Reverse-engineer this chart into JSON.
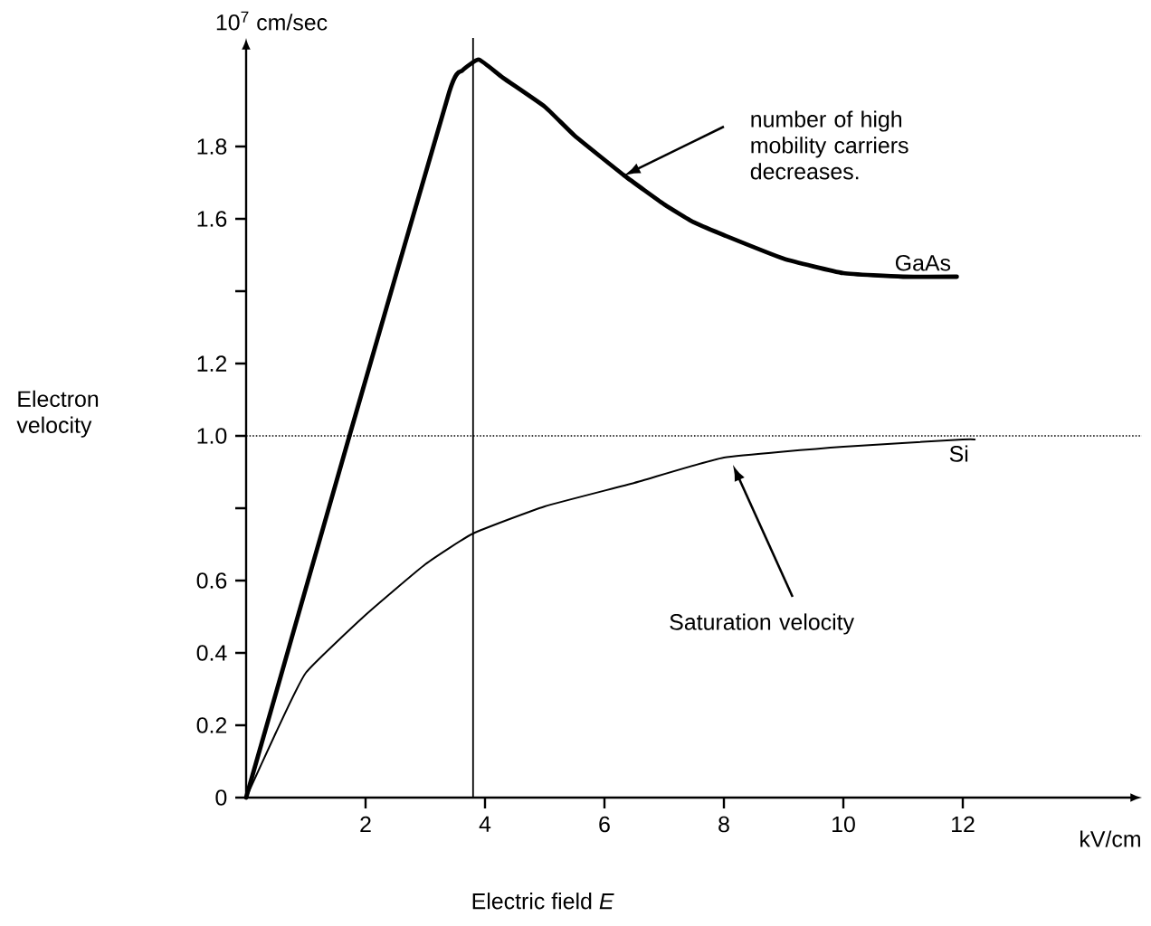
{
  "chart_data": {
    "type": "line",
    "xlabel": "Electric field *E*",
    "ylabel": "Electron velocity",
    "xlim": [
      0,
      15
    ],
    "ylim": [
      0,
      2.1
    ],
    "xticks": [
      2,
      4,
      6,
      8,
      10,
      12
    ],
    "yticks": [
      0,
      0.2,
      0.4,
      0.6,
      {
        "value": 0.8,
        "label": null
      },
      {
        "value": 1,
        "label": "1.0"
      },
      1.2,
      {
        "value": 1.4,
        "label": null
      },
      1.6,
      1.8
    ],
    "marker": "none",
    "series": [
      {
        "name": "GaAs",
        "color": "#000000",
        "line_style": "solid",
        "x": [
          0,
          1.73,
          3.4,
          3.62,
          3.9,
          4.3,
          5,
          5.5,
          6.33,
          7,
          7.5,
          8,
          9,
          10,
          11,
          11.9
        ],
        "values": [
          0,
          1.0,
          1.95,
          2.01,
          2.04,
          1.99,
          1.91,
          1.83,
          1.72,
          1.64,
          1.59,
          1.555,
          1.49,
          1.45,
          1.44,
          1.44
        ]
      },
      {
        "name": "Si",
        "color": "#000000",
        "line_style": "solid",
        "x": [
          0,
          0.5,
          1,
          2,
          3,
          3.8,
          5,
          6.5,
          8,
          10,
          12,
          12.2
        ],
        "values": [
          0,
          0.18,
          0.345,
          0.505,
          0.645,
          0.73,
          0.805,
          0.87,
          0.94,
          0.97,
          0.99,
          0.99
        ]
      }
    ],
    "ref_lines": [
      {
        "axis": "y",
        "value": 1,
        "line_style": "dotted",
        "color": "#000000"
      },
      {
        "axis": "x",
        "value": 3.8,
        "line_style": "solid",
        "color": "#000000"
      }
    ],
    "annotations": [
      {
        "text": "number of high mobility carriers decreases.",
        "x": 6.33,
        "y": 1.72
      },
      {
        "text": "Saturation velocity",
        "x": 8.15,
        "y": 0.92
      },
      "10$^{7}$ cm/sec",
      "kV/cm"
    ]
  }
}
